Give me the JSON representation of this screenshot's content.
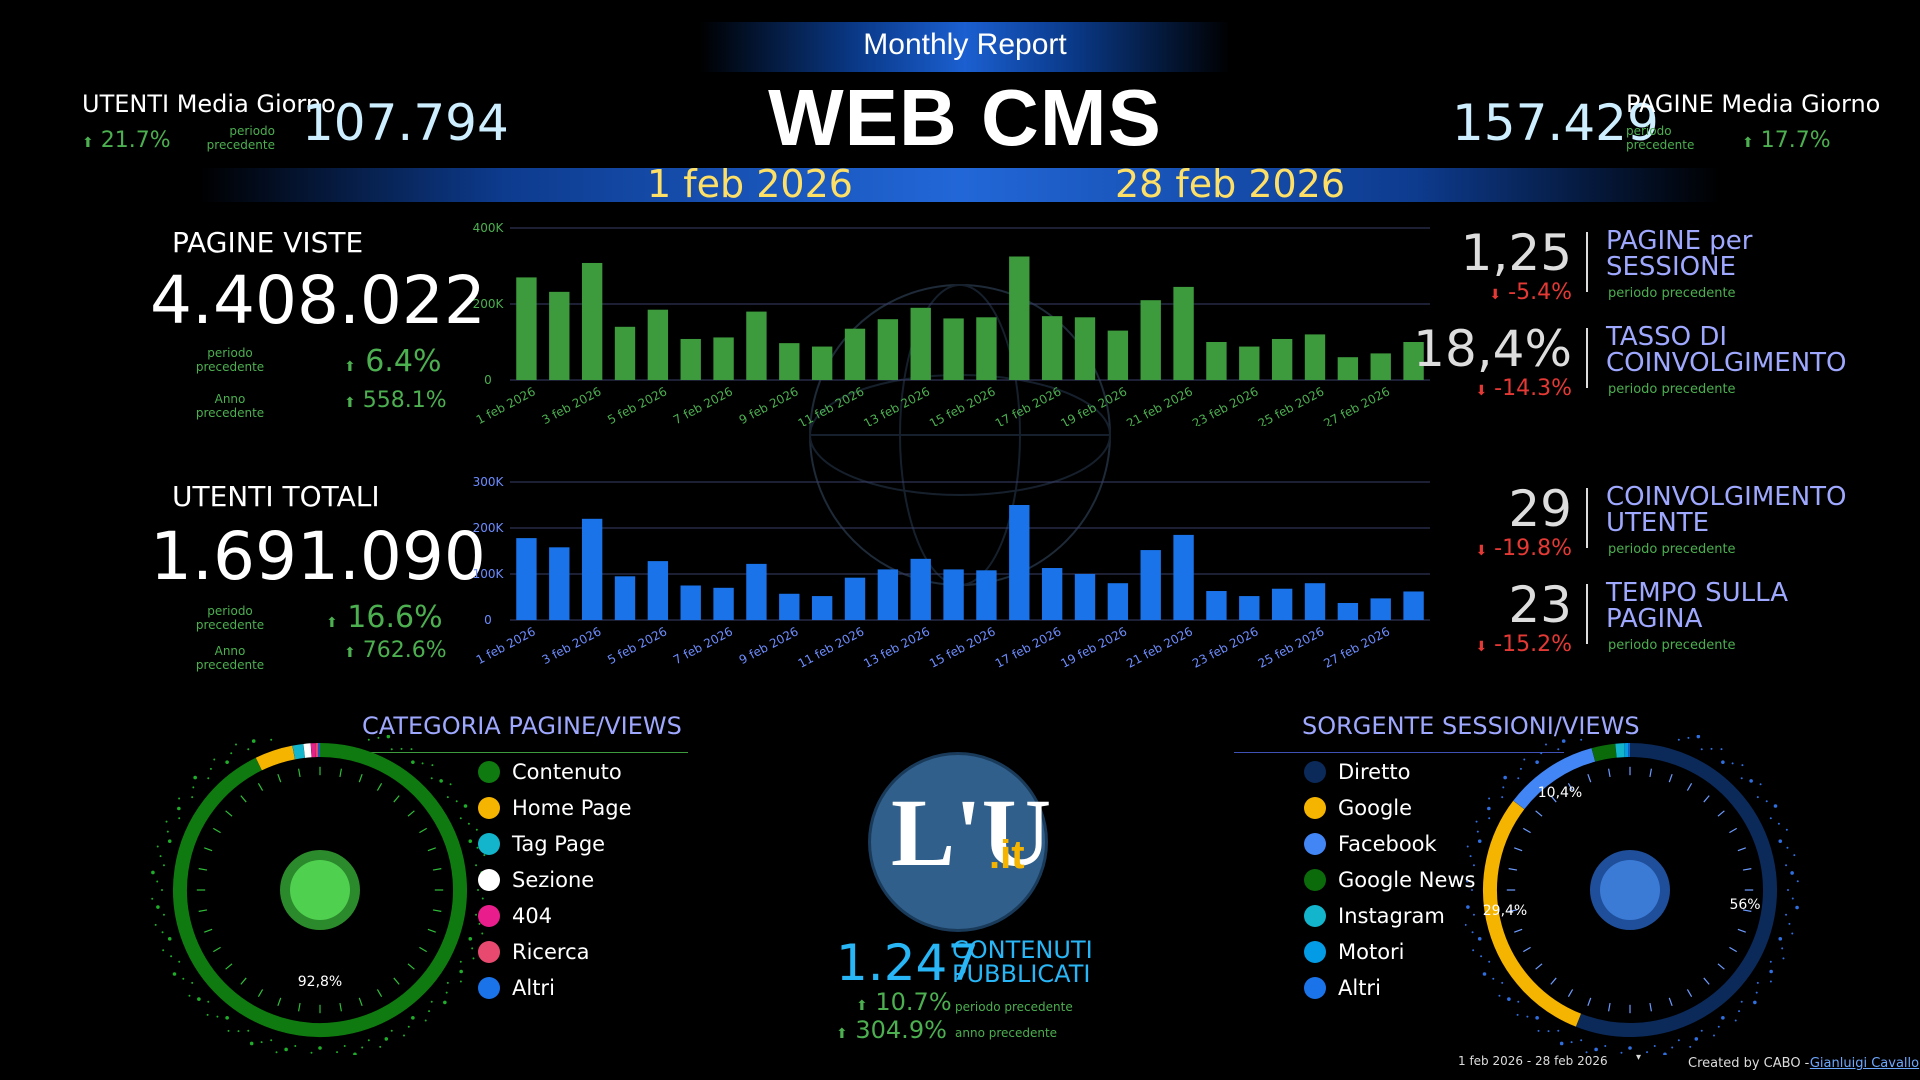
{
  "header": {
    "subtitle": "Monthly Report",
    "title": "WEB CMS",
    "date_start": "1 feb 2026",
    "date_end": "28 feb 2026"
  },
  "users_avg": {
    "label": "UTENTI Media Giorno",
    "value": "107.794",
    "delta": "21.7%",
    "delta_label": "periodo precedente"
  },
  "pages_avg": {
    "label": "PAGINE Media Giorno",
    "value": "157.429",
    "delta": "17.7%",
    "delta_label": "periodo precedente"
  },
  "page_views": {
    "label": "PAGINE VISTE",
    "value": "4.408.022",
    "prev_label": "periodo precedente",
    "prev_delta": "6.4%",
    "year_label": "Anno precedente",
    "year_delta": "558.1%"
  },
  "total_users": {
    "label": "UTENTI TOTALI",
    "value": "1.691.090",
    "prev_label": "periodo precedente",
    "prev_delta": "16.6%",
    "year_label": "Anno precedente",
    "year_delta": "762.6%"
  },
  "kpis": [
    {
      "value": "1,25",
      "title1": "PAGINE per",
      "title2": "SESSIONE",
      "delta": "-5.4%",
      "sub": "periodo precedente"
    },
    {
      "value": "18,4%",
      "title1": "TASSO DI",
      "title2": "COINVOLGIMENTO",
      "delta": "-14.3%",
      "sub": "periodo precedente"
    },
    {
      "value": "29",
      "title1": "COINVOLGIMENTO",
      "title2": "UTENTE",
      "delta": "-19.8%",
      "sub": "periodo precedente"
    },
    {
      "value": "23",
      "title1": "TEMPO SULLA",
      "title2": "PAGINA",
      "delta": "-15.2%",
      "sub": "periodo precedente"
    }
  ],
  "chart_data": [
    {
      "type": "bar",
      "color": "#3d9a3d",
      "yticks": [
        "400K",
        "200K",
        "0"
      ],
      "ylim": [
        0,
        400000
      ],
      "categories": [
        "1 feb 2026",
        "2 feb 2026",
        "3 feb 2026",
        "4 feb 2026",
        "5 feb 2026",
        "6 feb 2026",
        "7 feb 2026",
        "8 feb 2026",
        "9 feb 2026",
        "10 feb 2026",
        "11 feb 2026",
        "12 feb 2026",
        "13 feb 2026",
        "14 feb 2026",
        "15 feb 2026",
        "16 feb 2026",
        "17 feb 2026",
        "18 feb 2026",
        "19 feb 2026",
        "20 feb 2026",
        "21 feb 2026",
        "22 feb 2026",
        "23 feb 2026",
        "24 feb 2026",
        "25 feb 2026",
        "26 feb 2026",
        "27 feb 2026",
        "28 feb 2026"
      ],
      "xticks": [
        "1 feb 2026",
        "3 feb 2026",
        "5 feb 2026",
        "7 feb 2026",
        "9 feb 2026",
        "11 feb 2026",
        "13 feb 2026",
        "15 feb 2026",
        "17 feb 2026",
        "19 feb 2026",
        "21 feb 2026",
        "23 feb 2026",
        "25 feb 2026",
        "27 feb 2026"
      ],
      "values": [
        270000,
        232000,
        308000,
        140000,
        185000,
        108000,
        112000,
        180000,
        97000,
        88000,
        135000,
        160000,
        190000,
        162000,
        165000,
        325000,
        168000,
        165000,
        130000,
        210000,
        245000,
        100000,
        88000,
        108000,
        120000,
        60000,
        70000,
        100000
      ]
    },
    {
      "type": "bar",
      "color": "#1a73e8",
      "yticks": [
        "300K",
        "200K",
        "100K",
        "0"
      ],
      "ylim": [
        0,
        300000
      ],
      "categories": [
        "1 feb 2026",
        "2 feb 2026",
        "3 feb 2026",
        "4 feb 2026",
        "5 feb 2026",
        "6 feb 2026",
        "7 feb 2026",
        "8 feb 2026",
        "9 feb 2026",
        "10 feb 2026",
        "11 feb 2026",
        "12 feb 2026",
        "13 feb 2026",
        "14 feb 2026",
        "15 feb 2026",
        "16 feb 2026",
        "17 feb 2026",
        "18 feb 2026",
        "19 feb 2026",
        "20 feb 2026",
        "21 feb 2026",
        "22 feb 2026",
        "23 feb 2026",
        "24 feb 2026",
        "25 feb 2026",
        "26 feb 2026",
        "27 feb 2026",
        "28 feb 2026"
      ],
      "xticks": [
        "1 feb 2026",
        "3 feb 2026",
        "5 feb 2026",
        "7 feb 2026",
        "9 feb 2026",
        "11 feb 2026",
        "13 feb 2026",
        "15 feb 2026",
        "17 feb 2026",
        "19 feb 2026",
        "21 feb 2026",
        "23 feb 2026",
        "25 feb 2026",
        "27 feb 2026"
      ],
      "values": [
        178000,
        158000,
        220000,
        95000,
        128000,
        75000,
        70000,
        122000,
        57000,
        52000,
        92000,
        110000,
        133000,
        110000,
        108000,
        250000,
        113000,
        100000,
        80000,
        152000,
        185000,
        63000,
        52000,
        68000,
        80000,
        37000,
        47000,
        62000
      ]
    },
    {
      "type": "pie",
      "title": "CATEGORIA PAGINE/VIEWS",
      "labels": [
        "Contenuto",
        "Home Page",
        "Tag Page",
        "Sezione",
        "404",
        "Ricerca",
        "Altri"
      ],
      "colors": [
        "#0f7a0f",
        "#f4b400",
        "#12b5cb",
        "#ffffff",
        "#e91e8c",
        "#e84a6f",
        "#1a73e8"
      ],
      "values": [
        92.8,
        4.2,
        1.2,
        0.8,
        0.5,
        0.3,
        0.2
      ],
      "shown_label": "92,8%"
    },
    {
      "type": "pie",
      "title": "SORGENTE SESSIONI/VIEWS",
      "labels": [
        "Diretto",
        "Google",
        "Facebook",
        "Google News",
        "Instagram",
        "Motori",
        "Altri"
      ],
      "colors": [
        "#0b2a5a",
        "#f4b400",
        "#4285f4",
        "#0b6b0b",
        "#12b5cb",
        "#039be5",
        "#1a73e8"
      ],
      "values": [
        56,
        29.4,
        10.4,
        2.6,
        1.0,
        0.4,
        0.2
      ],
      "shown_labels": [
        "56%",
        "29,4%",
        "10,4%"
      ]
    }
  ],
  "content": {
    "logo_text": "L'U",
    "logo_suffix": ".it",
    "value": "1.247",
    "title1": "CONTENUTI",
    "title2": "PUBBLICATI",
    "prev_delta": "10.7%",
    "prev_label": "periodo precedente",
    "year_delta": "304.9%",
    "year_label": "anno precedente"
  },
  "footer": {
    "range": "1 feb 2026 - 28 feb 2026",
    "credit_prefix": "Created by CABO -",
    "credit_link": "Gianluigi Cavallo"
  }
}
